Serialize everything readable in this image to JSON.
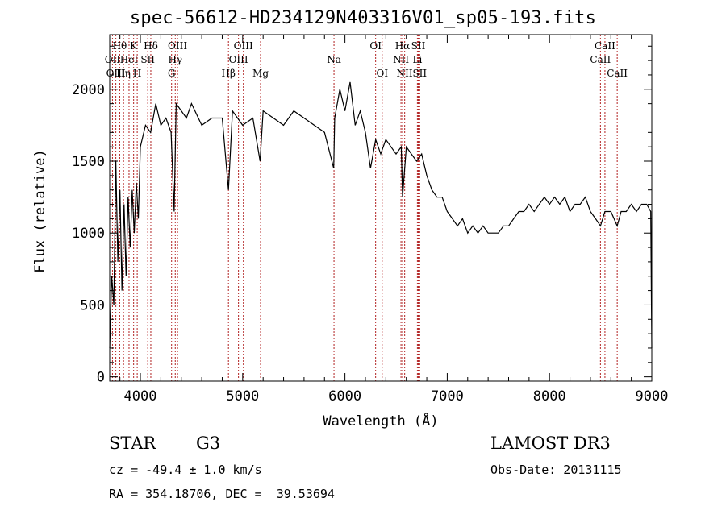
{
  "title": "spec-56612-HD234129N403316V01_sp05-193.fits",
  "info": {
    "class_label": "STAR",
    "subclass": "G3",
    "survey": "LAMOST DR3",
    "cz": "cz = -49.4 ± 1.0 km/s",
    "obs_date": "Obs-Date: 20131115",
    "coords": "RA = 354.18706, DEC =  39.53694"
  },
  "chart_data": {
    "type": "line",
    "title": "spec-56612-HD234129N403316V01_sp05-193.fits",
    "xlabel": "Wavelength (Å)",
    "ylabel": "Flux (relative)",
    "xlim": [
      3700,
      9000
    ],
    "ylim": [
      -30,
      2380
    ],
    "x_ticks": [
      4000,
      5000,
      6000,
      7000,
      8000,
      9000
    ],
    "y_ticks": [
      0,
      500,
      1000,
      1500,
      2000
    ],
    "grid": false,
    "line_color": "#000000",
    "marker_color": "#b22222",
    "series": [
      {
        "x": [
          3700,
          3720,
          3740,
          3760,
          3780,
          3800,
          3820,
          3840,
          3860,
          3880,
          3900,
          3920,
          3940,
          3960,
          3980,
          4000,
          4050,
          4100,
          4150,
          4200,
          4250,
          4300,
          4330,
          4350,
          4400,
          4450,
          4500,
          4600,
          4700,
          4800,
          4861,
          4900,
          5000,
          5100,
          5170,
          5200,
          5300,
          5400,
          5500,
          5600,
          5700,
          5800,
          5890,
          5900,
          5950,
          6000,
          6050,
          6100,
          6150,
          6200,
          6250,
          6300,
          6350,
          6400,
          6450,
          6500,
          6550,
          6563,
          6600,
          6650,
          6700,
          6750,
          6800,
          6850,
          6900,
          6950,
          7000,
          7050,
          7100,
          7150,
          7200,
          7250,
          7300,
          7350,
          7400,
          7450,
          7500,
          7550,
          7600,
          7650,
          7700,
          7750,
          7800,
          7850,
          7900,
          7950,
          8000,
          8050,
          8100,
          8150,
          8200,
          8250,
          8300,
          8350,
          8400,
          8450,
          8498,
          8542,
          8600,
          8662,
          8700,
          8750,
          8800,
          8850,
          8900,
          8950,
          8990,
          9000
        ],
        "y": [
          200,
          700,
          500,
          1500,
          800,
          1300,
          600,
          1200,
          700,
          1250,
          900,
          1300,
          1000,
          1350,
          1100,
          1600,
          1750,
          1700,
          1900,
          1750,
          1800,
          1700,
          1150,
          1900,
          1850,
          1800,
          1900,
          1750,
          1800,
          1800,
          1300,
          1850,
          1750,
          1800,
          1500,
          1850,
          1800,
          1750,
          1850,
          1800,
          1750,
          1700,
          1450,
          1800,
          2000,
          1850,
          2050,
          1750,
          1850,
          1700,
          1450,
          1650,
          1550,
          1650,
          1600,
          1550,
          1600,
          1250,
          1600,
          1550,
          1500,
          1550,
          1400,
          1300,
          1250,
          1250,
          1150,
          1100,
          1050,
          1100,
          1000,
          1050,
          1000,
          1050,
          1000,
          1000,
          1000,
          1050,
          1050,
          1100,
          1150,
          1150,
          1200,
          1150,
          1200,
          1250,
          1200,
          1250,
          1200,
          1250,
          1150,
          1200,
          1200,
          1250,
          1150,
          1100,
          1050,
          1150,
          1150,
          1050,
          1150,
          1150,
          1200,
          1150,
          1200,
          1200,
          1150,
          200
        ]
      }
    ],
    "lines": [
      {
        "name": "Hθ",
        "x": 3798,
        "row": 0
      },
      {
        "name": "OII",
        "x": 3727,
        "row": 1
      },
      {
        "name": "OIII",
        "x": 3760,
        "row": 2
      },
      {
        "name": "Hη",
        "x": 3835,
        "row": 2
      },
      {
        "name": "HeI",
        "x": 3889,
        "row": 1
      },
      {
        "name": "K",
        "x": 3934,
        "row": 0
      },
      {
        "name": "H",
        "x": 3969,
        "row": 2
      },
      {
        "name": "Hδ",
        "x": 4102,
        "row": 0
      },
      {
        "name": "SII",
        "x": 4072,
        "row": 1
      },
      {
        "name": "OIII",
        "x": 4363,
        "row": 0
      },
      {
        "name": "Hγ",
        "x": 4341,
        "row": 1
      },
      {
        "name": "G",
        "x": 4305,
        "row": 2
      },
      {
        "name": "OIII",
        "x": 5007,
        "row": 0
      },
      {
        "name": "OIII",
        "x": 4959,
        "row": 1
      },
      {
        "name": "Hβ",
        "x": 4861,
        "row": 2
      },
      {
        "name": "Mg",
        "x": 5175,
        "row": 2
      },
      {
        "name": "Na",
        "x": 5893,
        "row": 1
      },
      {
        "name": "OI",
        "x": 6300,
        "row": 0
      },
      {
        "name": "OI",
        "x": 6364,
        "row": 2
      },
      {
        "name": "Hα",
        "x": 6563,
        "row": 0
      },
      {
        "name": "SII",
        "x": 6717,
        "row": 0
      },
      {
        "name": "NII",
        "x": 6548,
        "row": 1
      },
      {
        "name": "Li",
        "x": 6708,
        "row": 1
      },
      {
        "name": "NII",
        "x": 6584,
        "row": 2
      },
      {
        "name": "SII",
        "x": 6731,
        "row": 2
      },
      {
        "name": "CaII",
        "x": 8542,
        "row": 0
      },
      {
        "name": "CaII",
        "x": 8498,
        "row": 1
      },
      {
        "name": "CaII",
        "x": 8662,
        "row": 2
      }
    ]
  }
}
